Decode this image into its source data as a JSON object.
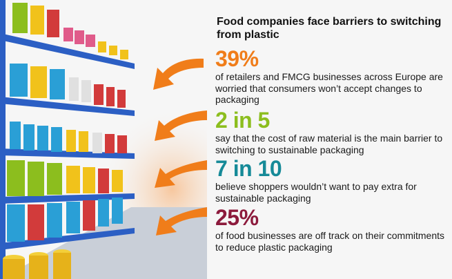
{
  "title": "Food companies face barriers to switching from plastic",
  "colors": {
    "orange": "#f07d1a",
    "green": "#8cbe1e",
    "teal": "#168a98",
    "maroon": "#8c1a3c",
    "shelf_blue": "#2c5fc4"
  },
  "icons": [
    "shelf-illustration",
    "arrow-icon"
  ],
  "stats": [
    {
      "value": "39%",
      "text": "of retailers and FMCG businesses across Europe are worried that consumers won’t accept changes to packaging"
    },
    {
      "value": "2 in 5",
      "text": "say that the cost of raw material is the main barrier to switching to sustainable packaging"
    },
    {
      "value": "7 in 10",
      "text": "believe shoppers wouldn’t want to pay extra for sustainable packaging"
    },
    {
      "value": "25%",
      "text": "of food businesses are off track on their commitments to reduce plastic packaging"
    }
  ]
}
